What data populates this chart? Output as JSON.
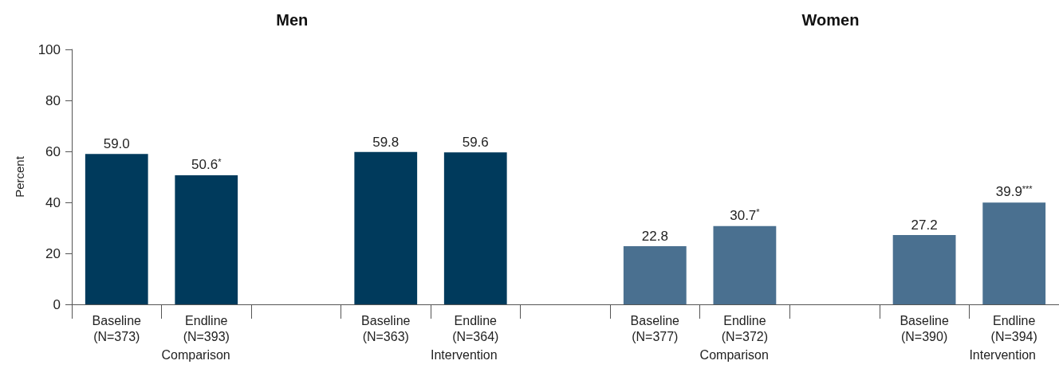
{
  "chart_data": [
    {
      "type": "bar",
      "title": "Men",
      "ylabel": "Percent",
      "categories": [
        "Baseline\n(N=373)",
        "Endline\n(N=393)",
        null,
        "Baseline\n(N=363)",
        "Endline\n(N=364)",
        null
      ],
      "values": [
        59.0,
        50.6,
        null,
        59.8,
        59.6,
        null
      ],
      "colors": [
        "#003a5c",
        "#003a5c",
        "#003a5c",
        "#003a5c",
        "#003a5c",
        "#003a5c"
      ],
      "value_labels": [
        "59.0",
        "50.6$^{*}$",
        null,
        "59.8",
        "59.6",
        null
      ],
      "annotations": [
        "Comparison",
        "Intervention"
      ],
      "ylim": [
        0,
        100
      ],
      "yticks": [
        0,
        20,
        40,
        60,
        80,
        100
      ],
      "grid": false
    },
    {
      "type": "bar",
      "title": "Women",
      "categories": [
        "Baseline\n(N=377)",
        "Endline\n(N=372)",
        null,
        "Baseline\n(N=390)",
        "Endline\n(N=394)"
      ],
      "values": [
        22.8,
        30.7,
        null,
        27.2,
        39.9
      ],
      "colors": [
        "#4a7090",
        "#4a7090",
        "#4a7090",
        "#4a7090",
        "#4a7090"
      ],
      "value_labels": [
        "22.8",
        "30.7$^{*}$",
        null,
        "27.2",
        "39.9$^{***}$"
      ],
      "annotations": [
        "Comparison",
        "Intervention"
      ],
      "ylim": [
        0,
        100
      ],
      "yticks": [
        0,
        20,
        40,
        60,
        80,
        100
      ],
      "grid": false,
      "tick_labels": "x"
    }
  ]
}
